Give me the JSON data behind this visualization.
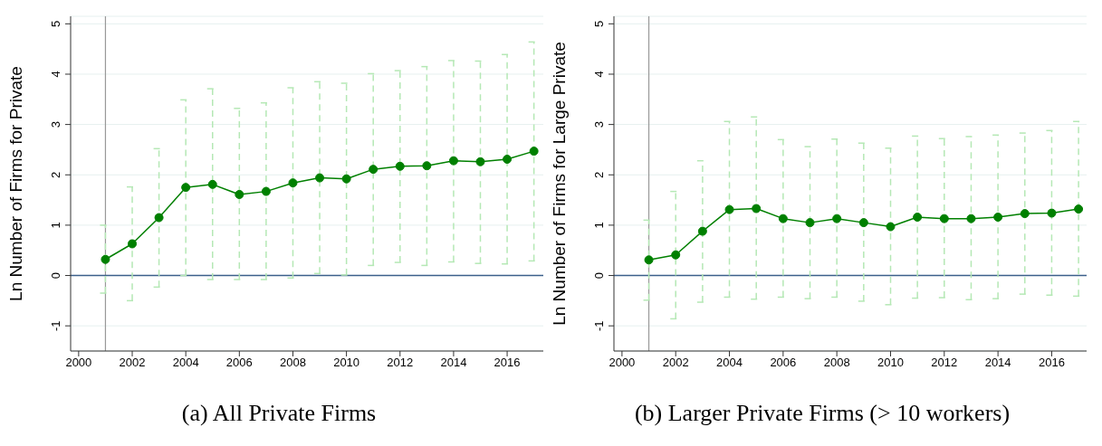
{
  "chart_data": [
    {
      "type": "line",
      "title": "(a) All Private Firms",
      "ylabel": "Ln Number of Firms for Private",
      "x": [
        2001,
        2002,
        2003,
        2004,
        2005,
        2006,
        2007,
        2008,
        2009,
        2010,
        2011,
        2012,
        2013,
        2014,
        2015,
        2016,
        2017
      ],
      "series": [
        {
          "color": "#008000",
          "values": [
            0.32,
            0.63,
            1.15,
            1.75,
            1.81,
            1.61,
            1.67,
            1.84,
            1.94,
            1.92,
            2.11,
            2.17,
            2.18,
            2.28,
            2.26,
            2.31,
            2.47
          ],
          "errors": [
            [
              -0.35,
              1.0
            ],
            [
              -0.5,
              1.76
            ],
            [
              -0.23,
              2.52
            ],
            [
              0.0,
              3.49
            ],
            [
              -0.08,
              3.71
            ],
            [
              -0.08,
              3.32
            ],
            [
              -0.08,
              3.43
            ],
            [
              -0.05,
              3.73
            ],
            [
              0.04,
              3.85
            ],
            [
              0.01,
              3.82
            ],
            [
              0.2,
              4.01
            ],
            [
              0.26,
              4.07
            ],
            [
              0.2,
              4.15
            ],
            [
              0.27,
              4.27
            ],
            [
              0.24,
              4.26
            ],
            [
              0.23,
              4.39
            ],
            [
              0.29,
              4.64
            ]
          ]
        }
      ],
      "xlim": [
        1999.7,
        2017.35
      ],
      "xticks": [
        2000,
        2002,
        2004,
        2006,
        2008,
        2010,
        2012,
        2014,
        2016
      ],
      "ylim": [
        -1.5,
        5.15
      ],
      "yticks": [
        -1,
        0,
        1,
        2,
        3,
        4,
        5
      ],
      "ref_lines": [
        {
          "axis": "x",
          "value": 2001,
          "color": "#999999"
        },
        {
          "axis": "y",
          "value": 0,
          "color": "#3b5f8a"
        }
      ],
      "grid": "y",
      "marker": "circle",
      "line_style": "solid",
      "legend": false
    },
    {
      "type": "line",
      "title": "(b) Larger Private Firms (> 10 workers)",
      "ylabel": "Ln Number of Firms for Large Private",
      "x": [
        2001,
        2002,
        2003,
        2004,
        2005,
        2006,
        2007,
        2008,
        2009,
        2010,
        2011,
        2012,
        2013,
        2014,
        2015,
        2016,
        2017
      ],
      "series": [
        {
          "color": "#008000",
          "values": [
            0.31,
            0.41,
            0.88,
            1.31,
            1.33,
            1.13,
            1.05,
            1.13,
            1.05,
            0.97,
            1.16,
            1.13,
            1.13,
            1.16,
            1.23,
            1.24,
            1.32
          ],
          "errors": [
            [
              -0.49,
              1.1
            ],
            [
              -0.86,
              1.67
            ],
            [
              -0.53,
              2.28
            ],
            [
              -0.43,
              3.06
            ],
            [
              -0.47,
              3.15
            ],
            [
              -0.43,
              2.7
            ],
            [
              -0.46,
              2.56
            ],
            [
              -0.43,
              2.71
            ],
            [
              -0.51,
              2.63
            ],
            [
              -0.58,
              2.53
            ],
            [
              -0.45,
              2.77
            ],
            [
              -0.44,
              2.72
            ],
            [
              -0.48,
              2.76
            ],
            [
              -0.46,
              2.79
            ],
            [
              -0.37,
              2.83
            ],
            [
              -0.39,
              2.88
            ],
            [
              -0.41,
              3.06
            ]
          ]
        }
      ],
      "xlim": [
        1999.7,
        2017.3
      ],
      "xticks": [
        2000,
        2002,
        2004,
        2006,
        2008,
        2010,
        2012,
        2014,
        2016
      ],
      "ylim": [
        -1.5,
        5.15
      ],
      "yticks": [
        -1,
        0,
        1,
        2,
        3,
        4,
        5
      ],
      "ref_lines": [
        {
          "axis": "x",
          "value": 2001,
          "color": "#999999"
        },
        {
          "axis": "y",
          "value": 0,
          "color": "#3b5f8a"
        }
      ],
      "grid": "y",
      "marker": "circle",
      "line_style": "solid",
      "legend": false
    }
  ]
}
